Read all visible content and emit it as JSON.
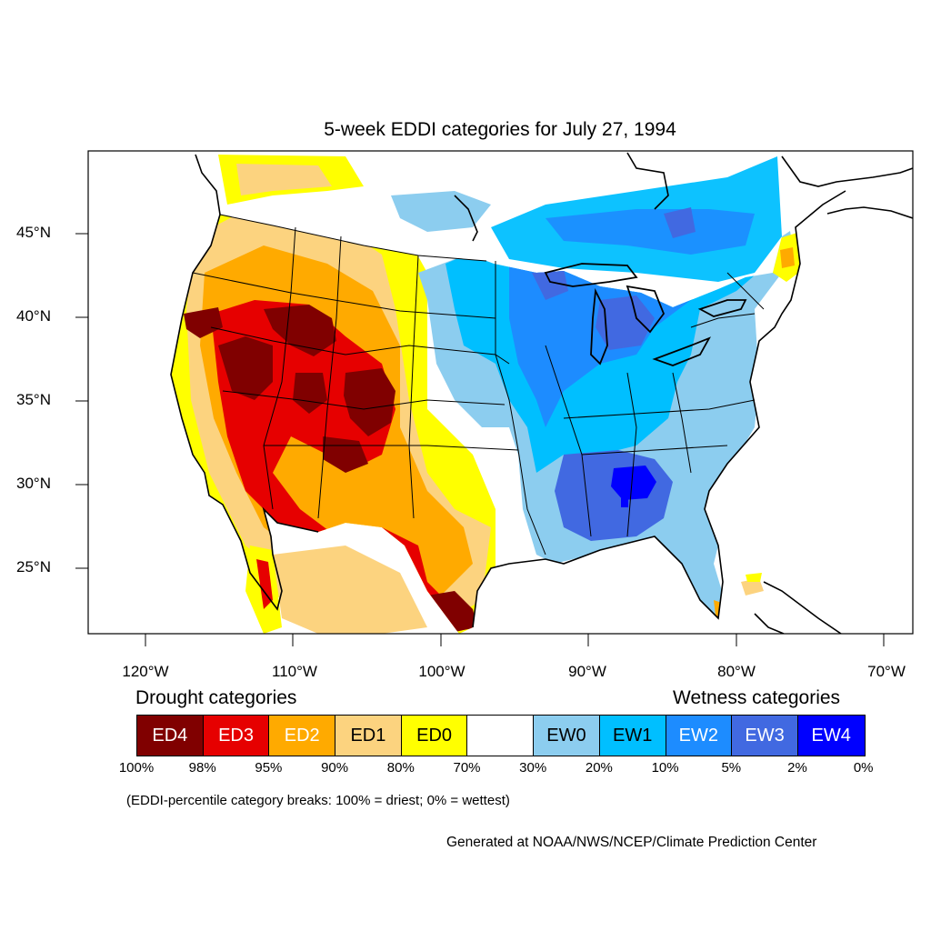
{
  "title": "5-week EDDI categories for July 27, 1994",
  "axes": {
    "lat_labels": [
      "45°N",
      "40°N",
      "35°N",
      "30°N",
      "25°N"
    ],
    "lon_labels": [
      "120°W",
      "110°W",
      "100°W",
      "90°W",
      "80°W",
      "70°W"
    ]
  },
  "legend": {
    "drought_heading": "Drought categories",
    "wetness_heading": "Wetness categories",
    "categories": [
      {
        "label": "ED4",
        "color": "#800000",
        "text_color": "#ffffff"
      },
      {
        "label": "ED3",
        "color": "#e60000",
        "text_color": "#ffffff"
      },
      {
        "label": "ED2",
        "color": "#ffaa00",
        "text_color": "#ffffff"
      },
      {
        "label": "ED1",
        "color": "#fcd37f",
        "text_color": "#000000"
      },
      {
        "label": "ED0",
        "color": "#ffff00",
        "text_color": "#000000"
      },
      {
        "label": "",
        "color": "#ffffff",
        "text_color": "#000000"
      },
      {
        "label": "EW0",
        "color": "#8ccdef",
        "text_color": "#000000"
      },
      {
        "label": "EW1",
        "color": "#00bfff",
        "text_color": "#000000"
      },
      {
        "label": "EW2",
        "color": "#1d8cff",
        "text_color": "#ffffff"
      },
      {
        "label": "EW3",
        "color": "#4169e1",
        "text_color": "#ffffff"
      },
      {
        "label": "EW4",
        "color": "#0000ff",
        "text_color": "#ffffff"
      }
    ],
    "breaks": [
      "100%",
      "98%",
      "95%",
      "90%",
      "80%",
      "70%",
      "30%",
      "20%",
      "10%",
      "5%",
      "2%",
      "0%"
    ]
  },
  "note": "(EDDI-percentile category breaks: 100% = driest; 0% = wettest)",
  "credit": "Generated at NOAA/NWS/NCEP/Climate Prediction Center"
}
